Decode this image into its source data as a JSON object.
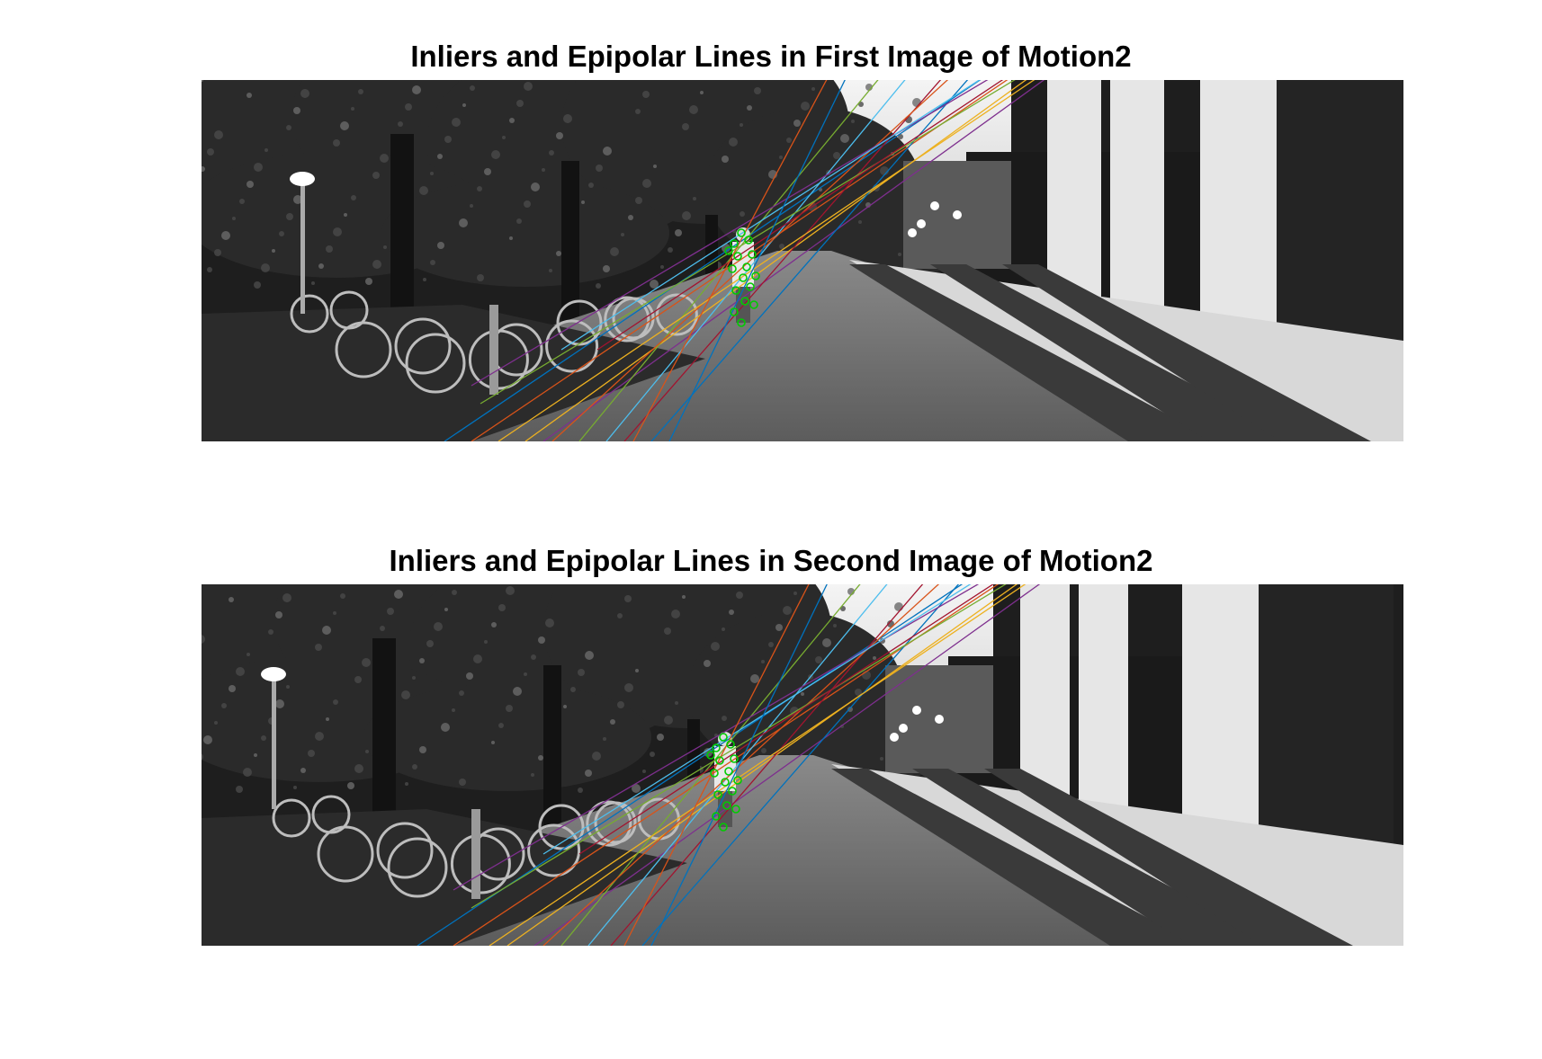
{
  "figure": {
    "panels": [
      {
        "title": "Inliers and Epipolar Lines in First Image of Motion2"
      },
      {
        "title": "Inliers and Epipolar Lines in Second Image of Motion2"
      }
    ]
  },
  "colors": {
    "inlier_marker": "#00cc00",
    "epipolar_lines": [
      "#0072bd",
      "#d95319",
      "#edb120",
      "#7e2f8e",
      "#77ac30",
      "#4dbeee",
      "#a2142f"
    ]
  }
}
